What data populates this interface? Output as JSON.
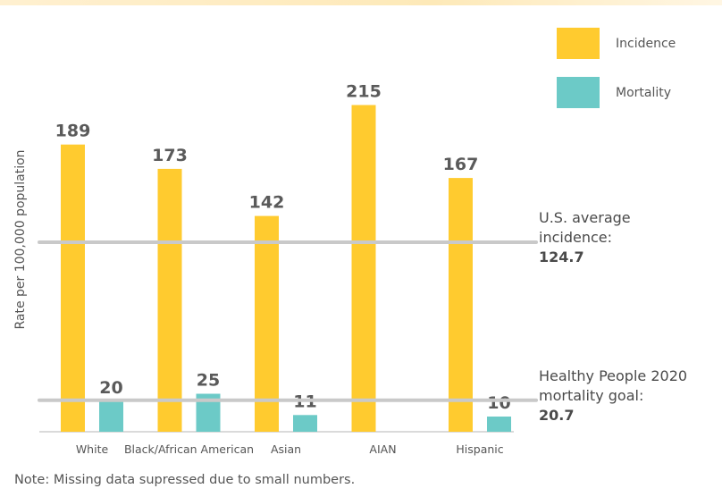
{
  "chart_data": {
    "type": "bar",
    "categories": [
      "White",
      "Black/African American",
      "Asian",
      "AIAN",
      "Hispanic"
    ],
    "series": [
      {
        "name": "Incidence",
        "color": "#ffcb2f",
        "values": [
          189,
          173,
          142,
          215,
          167
        ]
      },
      {
        "name": "Mortality",
        "color": "#6ccac7",
        "values": [
          20,
          25,
          11,
          null,
          10
        ]
      }
    ],
    "ylabel": "Rate per 100,000 population",
    "ylim": [
      0,
      230
    ],
    "reference_lines": [
      {
        "lines": [
          "U.S. average",
          "incidence:"
        ],
        "value_label": "124.7",
        "value": 124.7
      },
      {
        "lines": [
          "Healthy People 2020",
          "mortality goal:"
        ],
        "value_label": "20.7",
        "value": 20.7
      }
    ],
    "legend_position": "top-right",
    "note": "Note: Missing data supressed due to small numbers."
  }
}
